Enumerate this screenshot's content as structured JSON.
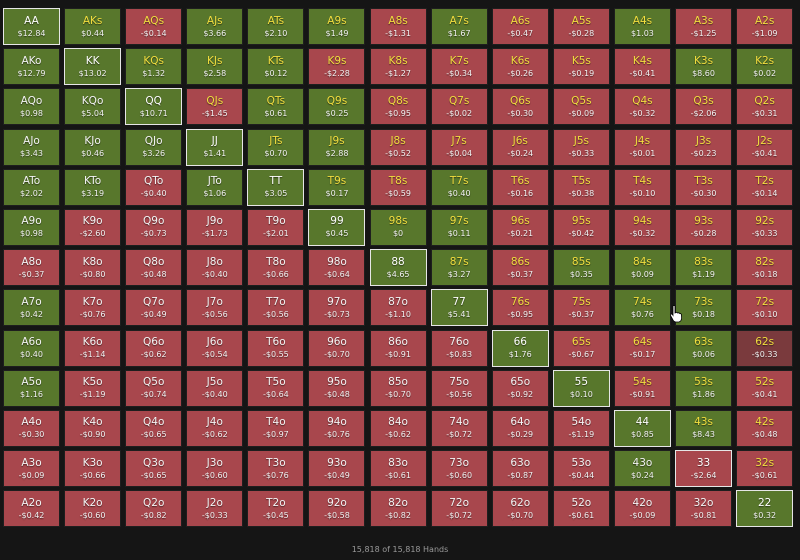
{
  "colors": {
    "positive": "#58772c",
    "negative": "#a8474d",
    "suited_text": "#f2de3e",
    "offsuit_text": "#f4f4f4",
    "background": "#151515"
  },
  "grid": [
    [
      "AA",
      "$12.84",
      "AKs",
      "$0.44",
      "AQs",
      "-$0.14",
      "AJs",
      "$3.66",
      "ATs",
      "$2.10",
      "A9s",
      "$1.49",
      "A8s",
      "-$1.31",
      "A7s",
      "$1.67",
      "A6s",
      "-$0.47",
      "A5s",
      "-$0.28",
      "A4s",
      "$1.03",
      "A3s",
      "-$1.25",
      "A2s",
      "-$1.09"
    ],
    [
      "AKo",
      "$12.79",
      "KK",
      "$13.02",
      "KQs",
      "$1.32",
      "KJs",
      "$2.58",
      "KTs",
      "$0.12",
      "K9s",
      "-$2.28",
      "K8s",
      "-$1.27",
      "K7s",
      "-$0.34",
      "K6s",
      "-$0.26",
      "K5s",
      "-$0.19",
      "K4s",
      "-$0.41",
      "K3s",
      "$8.60",
      "K2s",
      "$0.02"
    ],
    [
      "AQo",
      "$0.98",
      "KQo",
      "$5.04",
      "QQ",
      "$10.71",
      "QJs",
      "-$1.45",
      "QTs",
      "$0.61",
      "Q9s",
      "$0.25",
      "Q8s",
      "-$0.95",
      "Q7s",
      "-$0.02",
      "Q6s",
      "-$0.30",
      "Q5s",
      "-$0.09",
      "Q4s",
      "-$0.32",
      "Q3s",
      "-$2.06",
      "Q2s",
      "-$0.31"
    ],
    [
      "AJo",
      "$3.43",
      "KJo",
      "$0.46",
      "QJo",
      "$3.26",
      "JJ",
      "$1.41",
      "JTs",
      "$0.70",
      "J9s",
      "$2.88",
      "J8s",
      "-$0.52",
      "J7s",
      "-$0.04",
      "J6s",
      "-$0.24",
      "J5s",
      "-$0.33",
      "J4s",
      "-$0.01",
      "J3s",
      "-$0.23",
      "J2s",
      "-$0.41"
    ],
    [
      "ATo",
      "$2.02",
      "KTo",
      "$3.19",
      "QTo",
      "-$0.40",
      "JTo",
      "$1.06",
      "TT",
      "$3.05",
      "T9s",
      "$0.17",
      "T8s",
      "-$0.59",
      "T7s",
      "$0.40",
      "T6s",
      "-$0.16",
      "T5s",
      "-$0.38",
      "T4s",
      "-$0.10",
      "T3s",
      "-$0.30",
      "T2s",
      "-$0.14"
    ],
    [
      "A9o",
      "$0.98",
      "K9o",
      "-$2.60",
      "Q9o",
      "-$0.73",
      "J9o",
      "-$1.73",
      "T9o",
      "-$2.01",
      "99",
      "$0.45",
      "98s",
      "$0",
      "97s",
      "$0.11",
      "96s",
      "-$0.21",
      "95s",
      "-$0.42",
      "94s",
      "-$0.32",
      "93s",
      "-$0.28",
      "92s",
      "-$0.33"
    ],
    [
      "A8o",
      "-$0.37",
      "K8o",
      "-$0.80",
      "Q8o",
      "-$0.48",
      "J8o",
      "-$0.40",
      "T8o",
      "-$0.66",
      "98o",
      "-$0.64",
      "88",
      "$4.65",
      "87s",
      "$3.27",
      "86s",
      "-$0.37",
      "85s",
      "$0.35",
      "84s",
      "$0.09",
      "83s",
      "$1.19",
      "82s",
      "-$0.18"
    ],
    [
      "A7o",
      "$0.42",
      "K7o",
      "-$0.76",
      "Q7o",
      "-$0.49",
      "J7o",
      "-$0.56",
      "T7o",
      "-$0.56",
      "97o",
      "-$0.73",
      "87o",
      "-$1.10",
      "77",
      "$5.41",
      "76s",
      "-$0.95",
      "75s",
      "-$0.37",
      "74s",
      "$0.76",
      "73s",
      "$0.18",
      "72s",
      "-$0.10"
    ],
    [
      "A6o",
      "$0.40",
      "K6o",
      "-$1.14",
      "Q6o",
      "-$0.62",
      "J6o",
      "-$0.54",
      "T6o",
      "-$0.55",
      "96o",
      "-$0.70",
      "86o",
      "-$0.91",
      "76o",
      "-$0.83",
      "66",
      "$1.76",
      "65s",
      "-$0.67",
      "64s",
      "-$0.17",
      "63s",
      "$0.06",
      "62s",
      "-$0.33"
    ],
    [
      "A5o",
      "$1.16",
      "K5o",
      "-$1.19",
      "Q5o",
      "-$0.74",
      "J5o",
      "-$0.40",
      "T5o",
      "-$0.64",
      "95o",
      "-$0.48",
      "85o",
      "-$0.70",
      "75o",
      "-$0.56",
      "65o",
      "-$0.92",
      "55",
      "$0.10",
      "54s",
      "-$0.91",
      "53s",
      "$1.86",
      "52s",
      "-$0.41"
    ],
    [
      "A4o",
      "-$0.30",
      "K4o",
      "-$0.90",
      "Q4o",
      "-$0.65",
      "J4o",
      "-$0.62",
      "T4o",
      "-$0.97",
      "94o",
      "-$0.76",
      "84o",
      "-$0.62",
      "74o",
      "-$0.72",
      "64o",
      "-$0.29",
      "54o",
      "-$1.19",
      "44",
      "$0.85",
      "43s",
      "$8.43",
      "42s",
      "-$0.48"
    ],
    [
      "A3o",
      "-$0.09",
      "K3o",
      "-$0.66",
      "Q3o",
      "-$0.65",
      "J3o",
      "-$0.60",
      "T3o",
      "-$0.76",
      "93o",
      "-$0.49",
      "83o",
      "-$0.61",
      "73o",
      "-$0.60",
      "63o",
      "-$0.87",
      "53o",
      "-$0.44",
      "43o",
      "$0.24",
      "33",
      "-$2.64",
      "32s",
      "-$0.61"
    ],
    [
      "A2o",
      "-$0.42",
      "K2o",
      "-$0.60",
      "Q2o",
      "-$0.82",
      "J2o",
      "-$0.33",
      "T2o",
      "-$0.45",
      "92o",
      "-$0.58",
      "82o",
      "-$0.82",
      "72o",
      "-$0.72",
      "62o",
      "-$0.70",
      "52o",
      "-$0.61",
      "42o",
      "-$0.09",
      "32o",
      "-$0.81",
      "22",
      "$0.32"
    ]
  ],
  "footer": {
    "label": "15,818 of 15,818 Hands"
  }
}
